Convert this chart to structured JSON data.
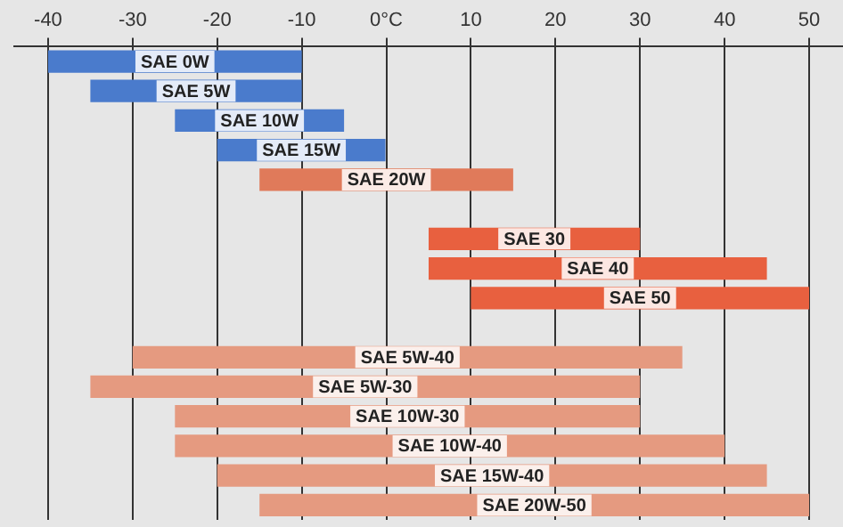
{
  "chart_data": {
    "type": "bar",
    "orientation": "horizontal",
    "categories": [
      "SAE 0W",
      "SAE 5W",
      "SAE 10W",
      "SAE 15W",
      "SAE 20W",
      null,
      "SAE 30",
      "SAE 40",
      "SAE 50",
      null,
      "SAE 5W-40",
      "SAE 5W-30",
      "SAE 10W-30",
      "SAE 10W-40",
      "SAE 15W-40",
      "SAE 20W-50"
    ],
    "base": [
      -40,
      -35,
      -25,
      -20,
      -15,
      null,
      5,
      5,
      10,
      null,
      -30,
      -35,
      -25,
      -25,
      -20,
      -15
    ],
    "values": [
      30,
      25,
      20,
      20,
      30,
      null,
      25,
      40,
      40,
      null,
      65,
      65,
      55,
      65,
      65,
      65
    ],
    "colors": [
      "#4a7bcc",
      "#4a7bcc",
      "#4a7bcc",
      "#4a7bcc",
      "#e07a5a",
      null,
      "#e8603f",
      "#e8603f",
      "#e8603f",
      null,
      "#e59a80",
      "#e59a80",
      "#e59a80",
      "#e59a80",
      "#e59a80",
      "#e59a80"
    ],
    "xlim": [
      -44,
      54
    ],
    "xticks": [
      -40,
      -30,
      -20,
      -10,
      {
        "value": 0,
        "label": "0°C"
      },
      10,
      20,
      30,
      40,
      50
    ],
    "grid": "x",
    "tick_labels": "x",
    "legend": false
  }
}
